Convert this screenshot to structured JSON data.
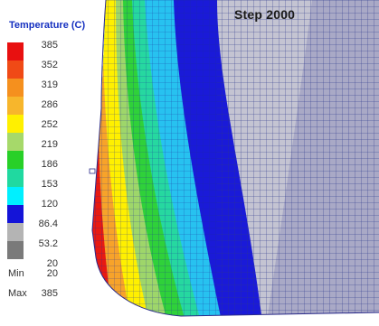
{
  "step_label": "Step 2000",
  "legend": {
    "title": "Temperature (C)",
    "ticks": [
      "385",
      "352",
      "319",
      "286",
      "252",
      "219",
      "186",
      "153",
      "120",
      "86.4",
      "53.2",
      "20"
    ],
    "colors": [
      "#e81010",
      "#f04a16",
      "#f5901e",
      "#f7b62c",
      "#fff000",
      "#a6d96a",
      "#28d028",
      "#20d9a0",
      "#00f0ff",
      "#1414d8",
      "#b4b4b4",
      "#7a7a7a"
    ],
    "min_label": "Min",
    "min_value": "20",
    "max_label": "Max",
    "max_value": "385"
  }
}
